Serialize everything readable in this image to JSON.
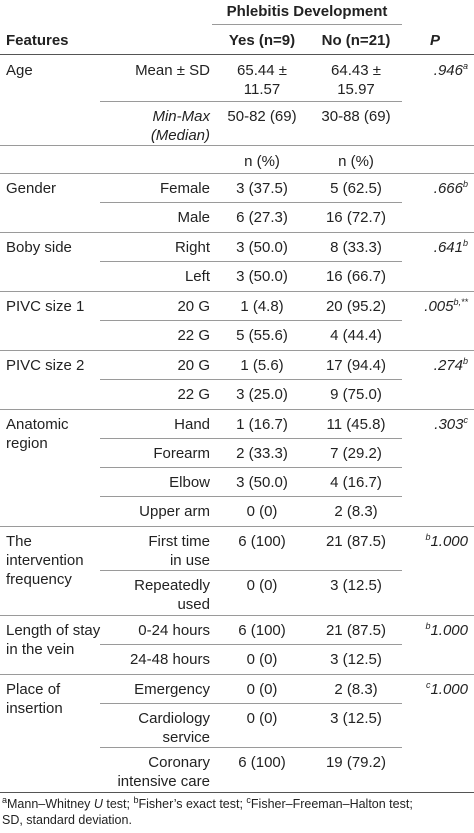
{
  "header": {
    "group_label": "Phlebitis Development",
    "features": "Features",
    "yes": "Yes (n=9)",
    "no": "No (n=21)",
    "p": "P"
  },
  "age": {
    "label": "Age",
    "mean_label": "Mean ± SD",
    "mean_yes": [
      "65.44 ±",
      "11.57"
    ],
    "mean_no": [
      "64.43 ±",
      "15.97"
    ],
    "p": ".946",
    "p_sup": "a",
    "minmax_label": [
      "Min-Max",
      "(Median)"
    ],
    "minmax_yes": "50-82 (69)",
    "minmax_no": "30-88 (69)"
  },
  "n_pct": "n (%)",
  "groups": [
    {
      "label": [
        "Gender"
      ],
      "p": ".666",
      "p_sup": "b",
      "p_sup_pos": "after",
      "rows": [
        {
          "label": [
            "Female"
          ],
          "yes": "3 (37.5)",
          "no": "5 (62.5)"
        },
        {
          "label": [
            "Male"
          ],
          "yes": "6 (27.3)",
          "no": "16 (72.7)"
        }
      ]
    },
    {
      "label": [
        "Boby side"
      ],
      "p": ".641",
      "p_sup": "b",
      "p_sup_pos": "after",
      "rows": [
        {
          "label": [
            "Right"
          ],
          "yes": "3 (50.0)",
          "no": "8 (33.3)"
        },
        {
          "label": [
            "Left"
          ],
          "yes": "3 (50.0)",
          "no": "16 (66.7)"
        }
      ]
    },
    {
      "label": [
        "PIVC size 1"
      ],
      "p": ".005",
      "p_sup": "b,**",
      "p_sup_pos": "after",
      "rows": [
        {
          "label": [
            "20 G"
          ],
          "yes": "1 (4.8)",
          "no": "20 (95.2)"
        },
        {
          "label": [
            "22 G"
          ],
          "yes": "5 (55.6)",
          "no": "4 (44.4)"
        }
      ]
    },
    {
      "label": [
        "PIVC size 2"
      ],
      "p": ".274",
      "p_sup": "b",
      "p_sup_pos": "after",
      "rows": [
        {
          "label": [
            "20 G"
          ],
          "yes": "1 (5.6)",
          "no": "17 (94.4)"
        },
        {
          "label": [
            "22 G"
          ],
          "yes": "3 (25.0)",
          "no": "9 (75.0)"
        }
      ]
    },
    {
      "label": [
        "Anatomic",
        "region"
      ],
      "p": ".303",
      "p_sup": "c",
      "p_sup_pos": "after",
      "rows": [
        {
          "label": [
            "Hand"
          ],
          "yes": "1 (16.7)",
          "no": "11 (45.8)"
        },
        {
          "label": [
            "Forearm"
          ],
          "yes": "2 (33.3)",
          "no": "7 (29.2)"
        },
        {
          "label": [
            "Elbow"
          ],
          "yes": "3 (50.0)",
          "no": "4 (16.7)"
        },
        {
          "label": [
            "Upper arm"
          ],
          "yes": "0 (0)",
          "no": "2 (8.3)"
        }
      ]
    },
    {
      "label": [
        "The",
        "intervention",
        "frequency"
      ],
      "p": "1.000",
      "p_sup": "b",
      "p_sup_pos": "before",
      "rows": [
        {
          "label": [
            "First time",
            "in use"
          ],
          "yes": "6 (100)",
          "no": "21 (87.5)"
        },
        {
          "label": [
            "Repeatedly",
            "used"
          ],
          "yes": "0 (0)",
          "no": "3 (12.5)"
        }
      ]
    },
    {
      "label": [
        "Length of stay",
        "in the vein"
      ],
      "p": "1.000",
      "p_sup": "b",
      "p_sup_pos": "before",
      "rows": [
        {
          "label": [
            "0-24 hours"
          ],
          "yes": "6 (100)",
          "no": "21 (87.5)"
        },
        {
          "label": [
            "24-48 hours"
          ],
          "yes": "0 (0)",
          "no": "3 (12.5)"
        }
      ]
    },
    {
      "label": [
        "Place of",
        "insertion"
      ],
      "p": "1.000",
      "p_sup": "c",
      "p_sup_pos": "before",
      "rows": [
        {
          "label": [
            "Emergency"
          ],
          "yes": "0 (0)",
          "no": "2 (8.3)"
        },
        {
          "label": [
            "Cardiology",
            "service"
          ],
          "yes": "0 (0)",
          "no": "3 (12.5)"
        },
        {
          "label": [
            "Coronary",
            "intensive care"
          ],
          "yes": "6 (100)",
          "no": "19 (79.2)"
        }
      ]
    }
  ],
  "footnote": {
    "line1": [
      {
        "sup": "a"
      },
      {
        "text": "Mann–Whitney "
      },
      {
        "text": "U",
        "italic": true
      },
      {
        "text": " test; "
      },
      {
        "sup": "b"
      },
      {
        "text": "Fisher’s exact test; "
      },
      {
        "sup": "c"
      },
      {
        "text": "Fisher–Freeman–Halton test;"
      }
    ],
    "line2": "SD, standard deviation."
  }
}
